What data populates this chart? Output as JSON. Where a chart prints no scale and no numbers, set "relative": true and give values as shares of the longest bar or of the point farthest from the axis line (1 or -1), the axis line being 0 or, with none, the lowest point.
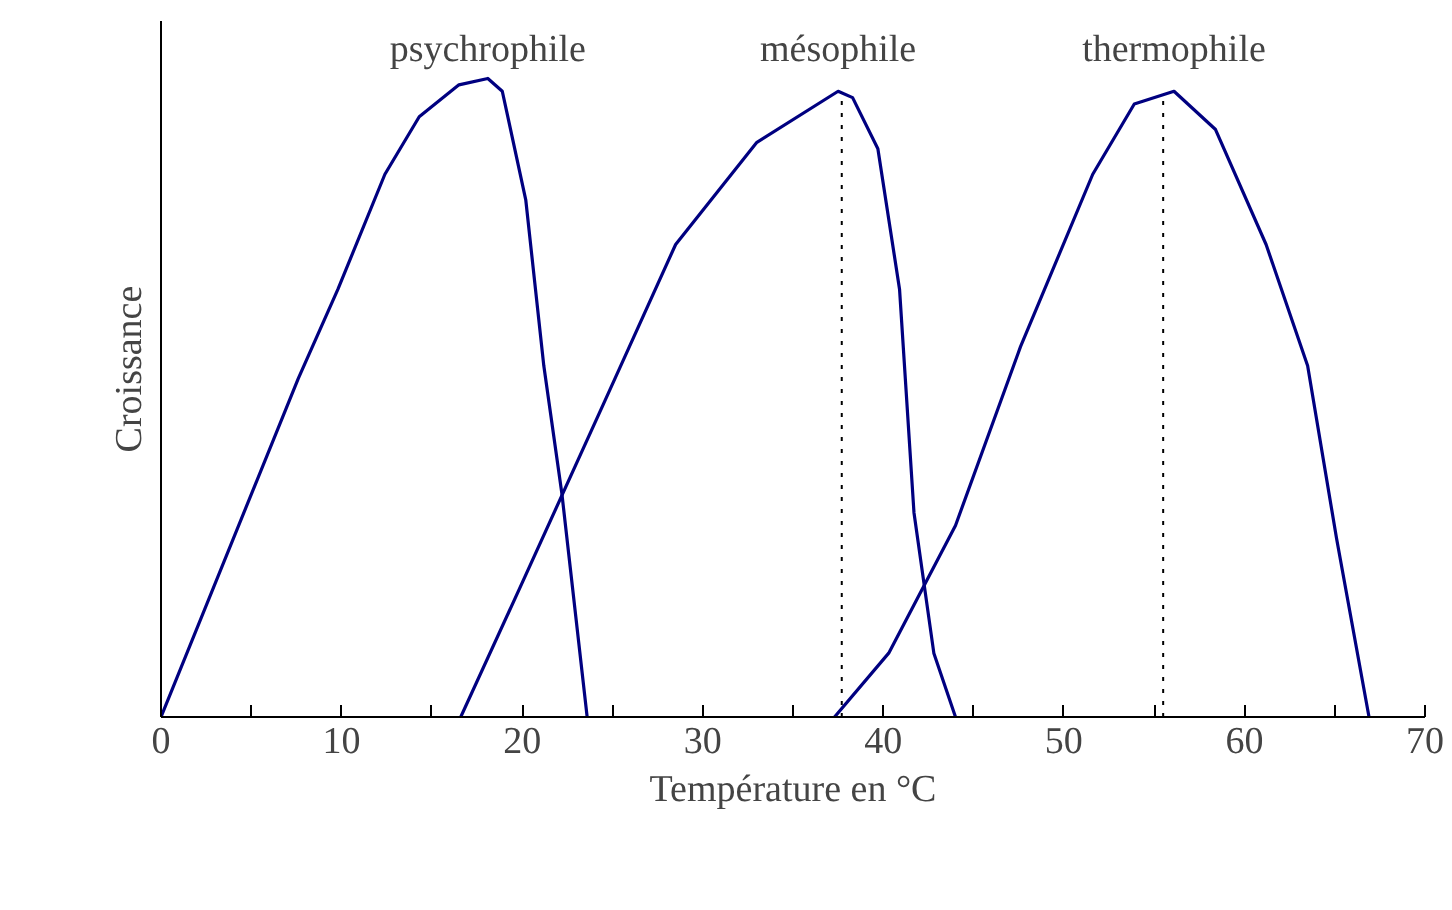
{
  "chart_data": {
    "type": "line",
    "relative": true,
    "xlabel": "Température en °C",
    "ylabel": "Croissance",
    "xlim": [
      0,
      70
    ],
    "xticks": [
      0,
      {
        "value": 5,
        "label": null
      },
      10,
      {
        "value": 15,
        "label": null
      },
      20,
      {
        "value": 25,
        "label": null
      },
      30,
      {
        "value": 35,
        "label": null
      },
      40,
      {
        "value": 45,
        "label": null
      },
      50,
      {
        "value": 55,
        "label": null
      },
      60,
      {
        "value": 65,
        "label": null
      },
      70
    ],
    "grid": false,
    "legend": false,
    "marker": "none",
    "line_style": "solid",
    "series": [
      {
        "name": "psychrophile",
        "color": "#000080",
        "x": [
          0,
          7.6,
          9.8,
          12.4,
          14.3,
          16.5,
          18.1,
          18.9,
          20.2,
          21.2,
          22.2,
          23.6
        ],
        "values": [
          0,
          0.53,
          0.67,
          0.85,
          0.94,
          0.99,
          1,
          0.98,
          0.81,
          0.55,
          0.35,
          0
        ]
      },
      {
        "name": "mésophile",
        "color": "#000080",
        "x": [
          16.6,
          20,
          24.5,
          28.5,
          33,
          37.5,
          38.3,
          39.7,
          40.9,
          41.7,
          42.8,
          44
        ],
        "values": [
          0,
          0.21,
          0.49,
          0.74,
          0.9,
          0.98,
          0.97,
          0.89,
          0.67,
          0.32,
          0.1,
          0
        ]
      },
      {
        "name": "thermophile",
        "color": "#000080",
        "x": [
          37.3,
          40.3,
          44,
          47.6,
          51.6,
          53.9,
          56.1,
          58.4,
          61.2,
          63.5,
          65.1,
          66.9
        ],
        "values": [
          0,
          0.1,
          0.3,
          0.58,
          0.85,
          0.96,
          0.98,
          0.92,
          0.74,
          0.55,
          0.28,
          0
        ]
      }
    ],
    "ref_lines": [
      {
        "axis": "x",
        "value": 37.7,
        "label": null,
        "color": "#000000",
        "line_style": "dotted"
      },
      {
        "axis": "x",
        "value": 55.5,
        "label": null,
        "color": "#000000",
        "line_style": "dotted"
      }
    ]
  }
}
